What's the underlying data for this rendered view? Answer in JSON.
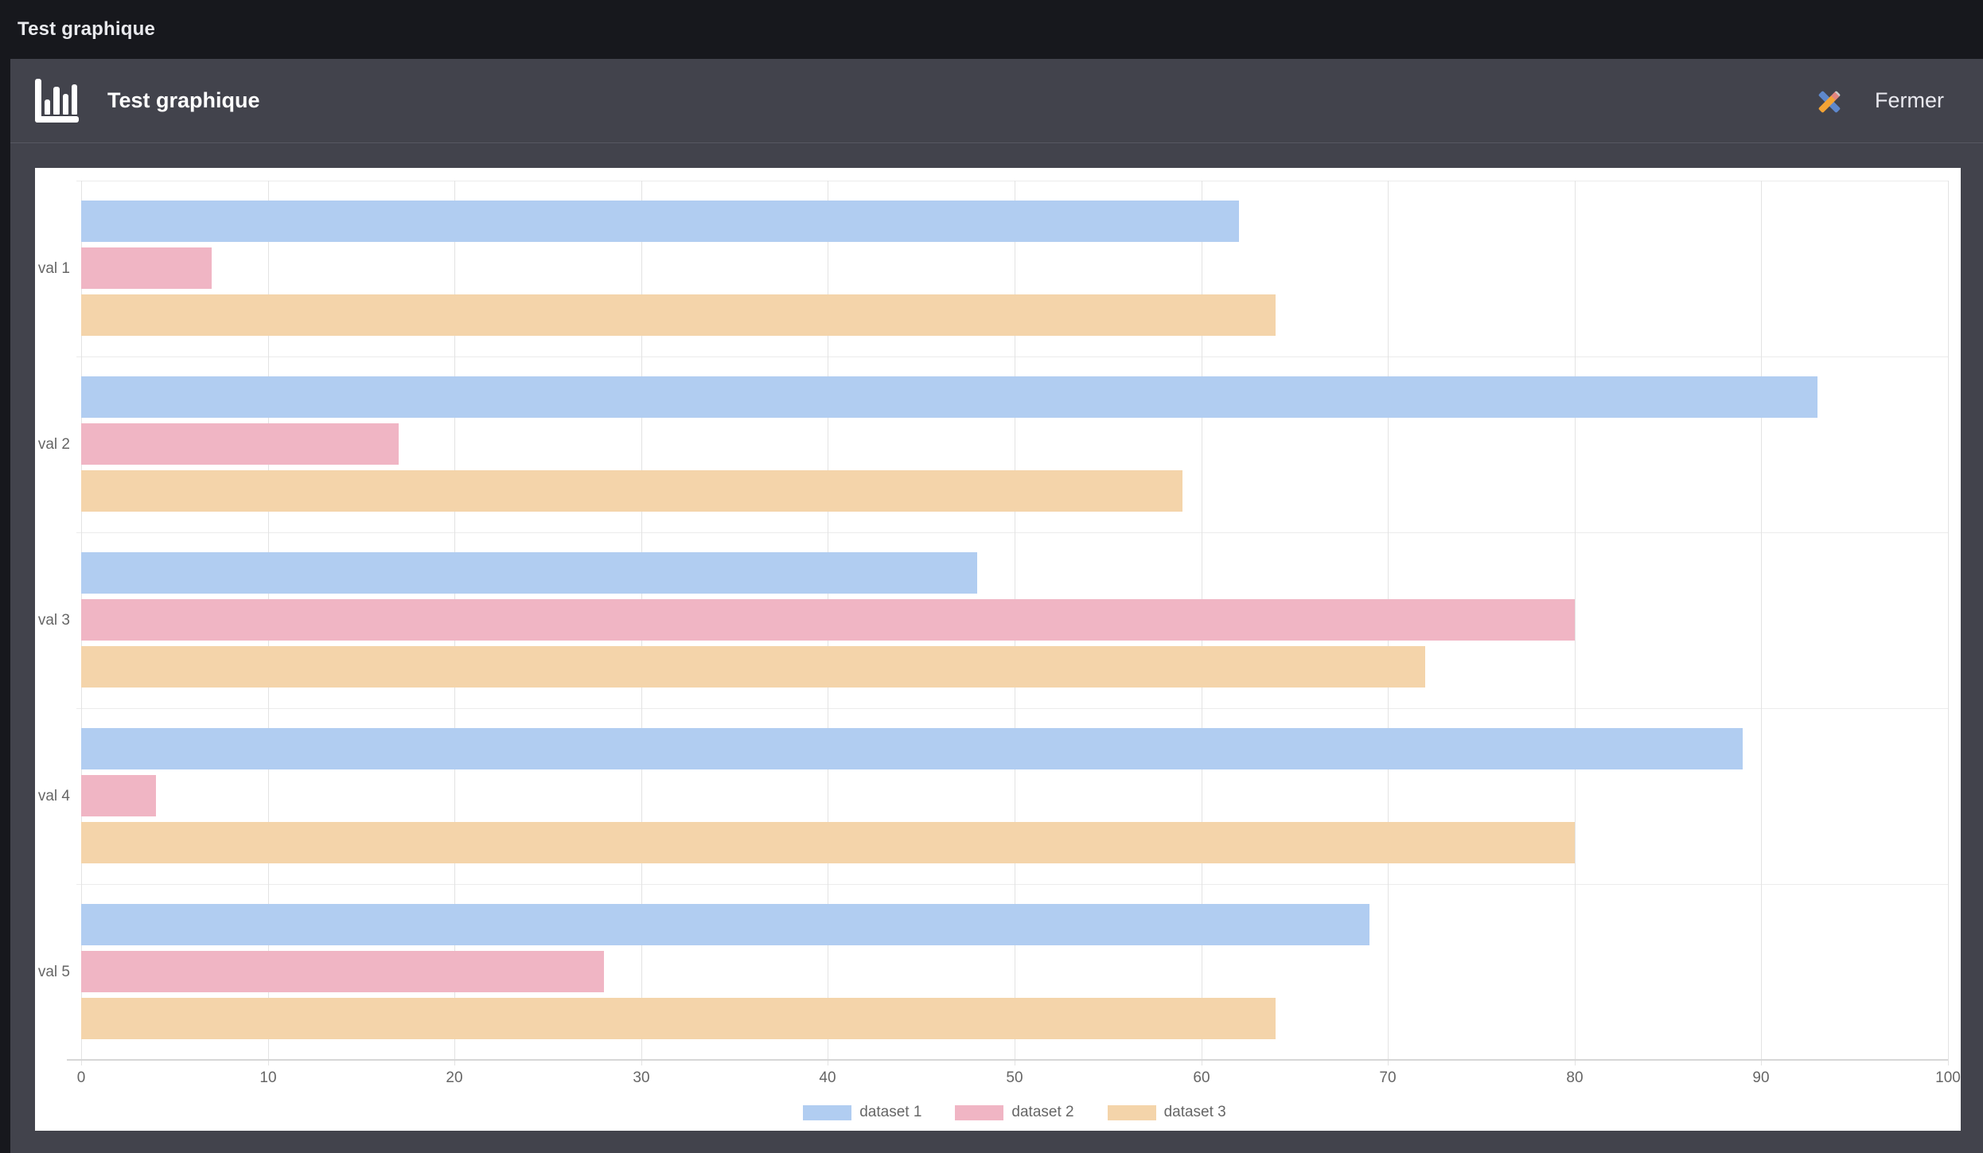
{
  "topbar": {
    "title": "Test graphique"
  },
  "header": {
    "title": "Test graphique",
    "close_label": "Fermer",
    "icons": {
      "left": "bar-chart-icon",
      "right": "pencil-ruler-icon"
    }
  },
  "colors": {
    "topbar_bg": "#17181d",
    "card_bg": "#42434c",
    "panel_bg": "#ffffff",
    "text_muted": "#666666",
    "icon_ruler_blue": "#5e88cc",
    "icon_pencil_orange": "#f3a335"
  },
  "chart_data": {
    "type": "bar",
    "orientation": "horizontal",
    "title": "",
    "xlabel": "",
    "ylabel": "",
    "categories": [
      "val 1",
      "val 2",
      "val 3",
      "val 4",
      "val 5"
    ],
    "series": [
      {
        "name": "dataset 1",
        "color": "#b1cdf1",
        "values": [
          62,
          93,
          48,
          89,
          69
        ]
      },
      {
        "name": "dataset 2",
        "color": "#f0b5c4",
        "values": [
          7,
          17,
          80,
          4,
          28
        ]
      },
      {
        "name": "dataset 3",
        "color": "#f4d4aa",
        "values": [
          64,
          59,
          72,
          80,
          64
        ]
      }
    ],
    "xlim": [
      0,
      100
    ],
    "x_ticks": [
      0,
      10,
      20,
      30,
      40,
      50,
      60,
      70,
      80,
      90,
      100
    ],
    "grid": true,
    "legend_position": "bottom"
  }
}
